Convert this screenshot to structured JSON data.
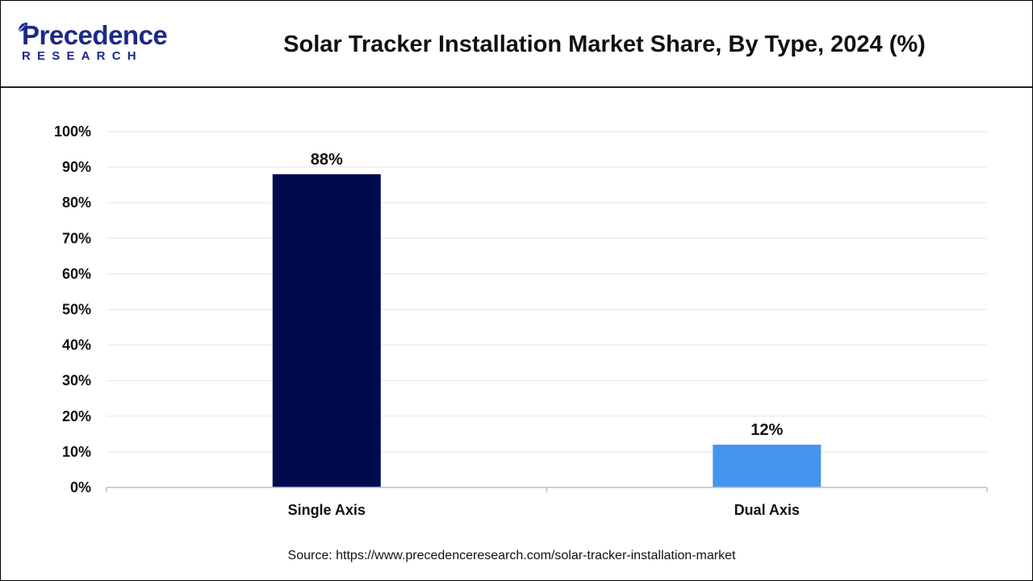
{
  "header": {
    "logo_word": "Precedence",
    "logo_sub": "RESEARCH",
    "title": "Solar Tracker Installation Market Share, By Type, 2024 (%)"
  },
  "colors": {
    "brand": "#1c2a88",
    "grid": "#e6e6e6",
    "axis": "#bfbfbf"
  },
  "chart_data": {
    "type": "bar",
    "title": "Solar Tracker Installation Market Share, By Type, 2024 (%)",
    "xlabel": "",
    "ylabel": "",
    "categories": [
      "Single Axis",
      "Dual Axis"
    ],
    "values": [
      88,
      12
    ],
    "value_labels": [
      "88%",
      "12%"
    ],
    "bar_colors": [
      "#000a4f",
      "#4495ee"
    ],
    "ylim": [
      0,
      100
    ],
    "y_ticks": [
      0,
      10,
      20,
      30,
      40,
      50,
      60,
      70,
      80,
      90,
      100
    ],
    "y_tick_labels": [
      "0%",
      "10%",
      "20%",
      "30%",
      "40%",
      "50%",
      "60%",
      "70%",
      "80%",
      "90%",
      "100%"
    ],
    "grid": true,
    "legend": "none"
  },
  "footer": {
    "source": "Source: https://www.precedenceresearch.com/solar-tracker-installation-market"
  }
}
